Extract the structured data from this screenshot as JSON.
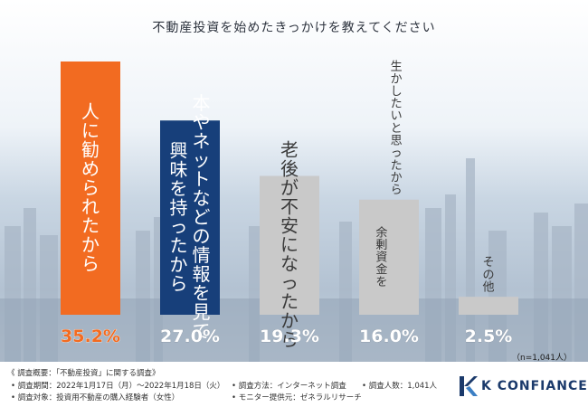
{
  "title": "不動産投資を始めたきっかけを教えてください",
  "chart_data": {
    "type": "bar",
    "title": "不動産投資を始めたきっかけを教えてください",
    "unit": "%",
    "categories": [
      "人に勧められたから",
      "本やネットなどの情報を見て興味を持ったから",
      "老後が不安になったから",
      "生かしたいと思ったから余剰資金を",
      "その他"
    ],
    "category_columns": [
      [
        "人に勧められたから"
      ],
      [
        "本やネットなどの情報を見て",
        "興味を持ったから"
      ],
      [
        "老後が不安になったから"
      ],
      [
        "生かしたいと思ったから",
        "余剰資金を"
      ],
      [
        "その他"
      ]
    ],
    "values": [
      35.2,
      27.0,
      19.3,
      16.0,
      2.5
    ],
    "value_labels": [
      "35.2%",
      "27.0%",
      "19.3%",
      "16.0%",
      "2.5%"
    ],
    "bar_colors": [
      "#f26b21",
      "#173f7a",
      "#c9c9c9",
      "#c9c9c9",
      "#c9c9c9"
    ],
    "text_colors": [
      "#ffffff",
      "#ffffff",
      "#3a3a3a",
      "#3a3a3a",
      "#3a3a3a"
    ],
    "value_colors": [
      "#f26b21",
      "#ffffff",
      "#ffffff",
      "#ffffff",
      "#ffffff"
    ],
    "ylim": [
      0,
      35.2
    ]
  },
  "sample_note": "（n=1,041人）",
  "footer": {
    "overview": "《 調査概要：「不動産投資」に関する調査》",
    "period": "• 調査期間：2022年1月17日（月）～2022年1月18日（火）",
    "method": "• 調査方法：インターネット調査",
    "count": "• 調査人数：1,041人",
    "target": "• 調査対象：投資用不動産の購入経験者（女性）",
    "provider": "• モニター提供元：ゼネラルリサーチ"
  },
  "logo": {
    "text": "K CONFIANCE",
    "color": "#1b3a6b"
  }
}
